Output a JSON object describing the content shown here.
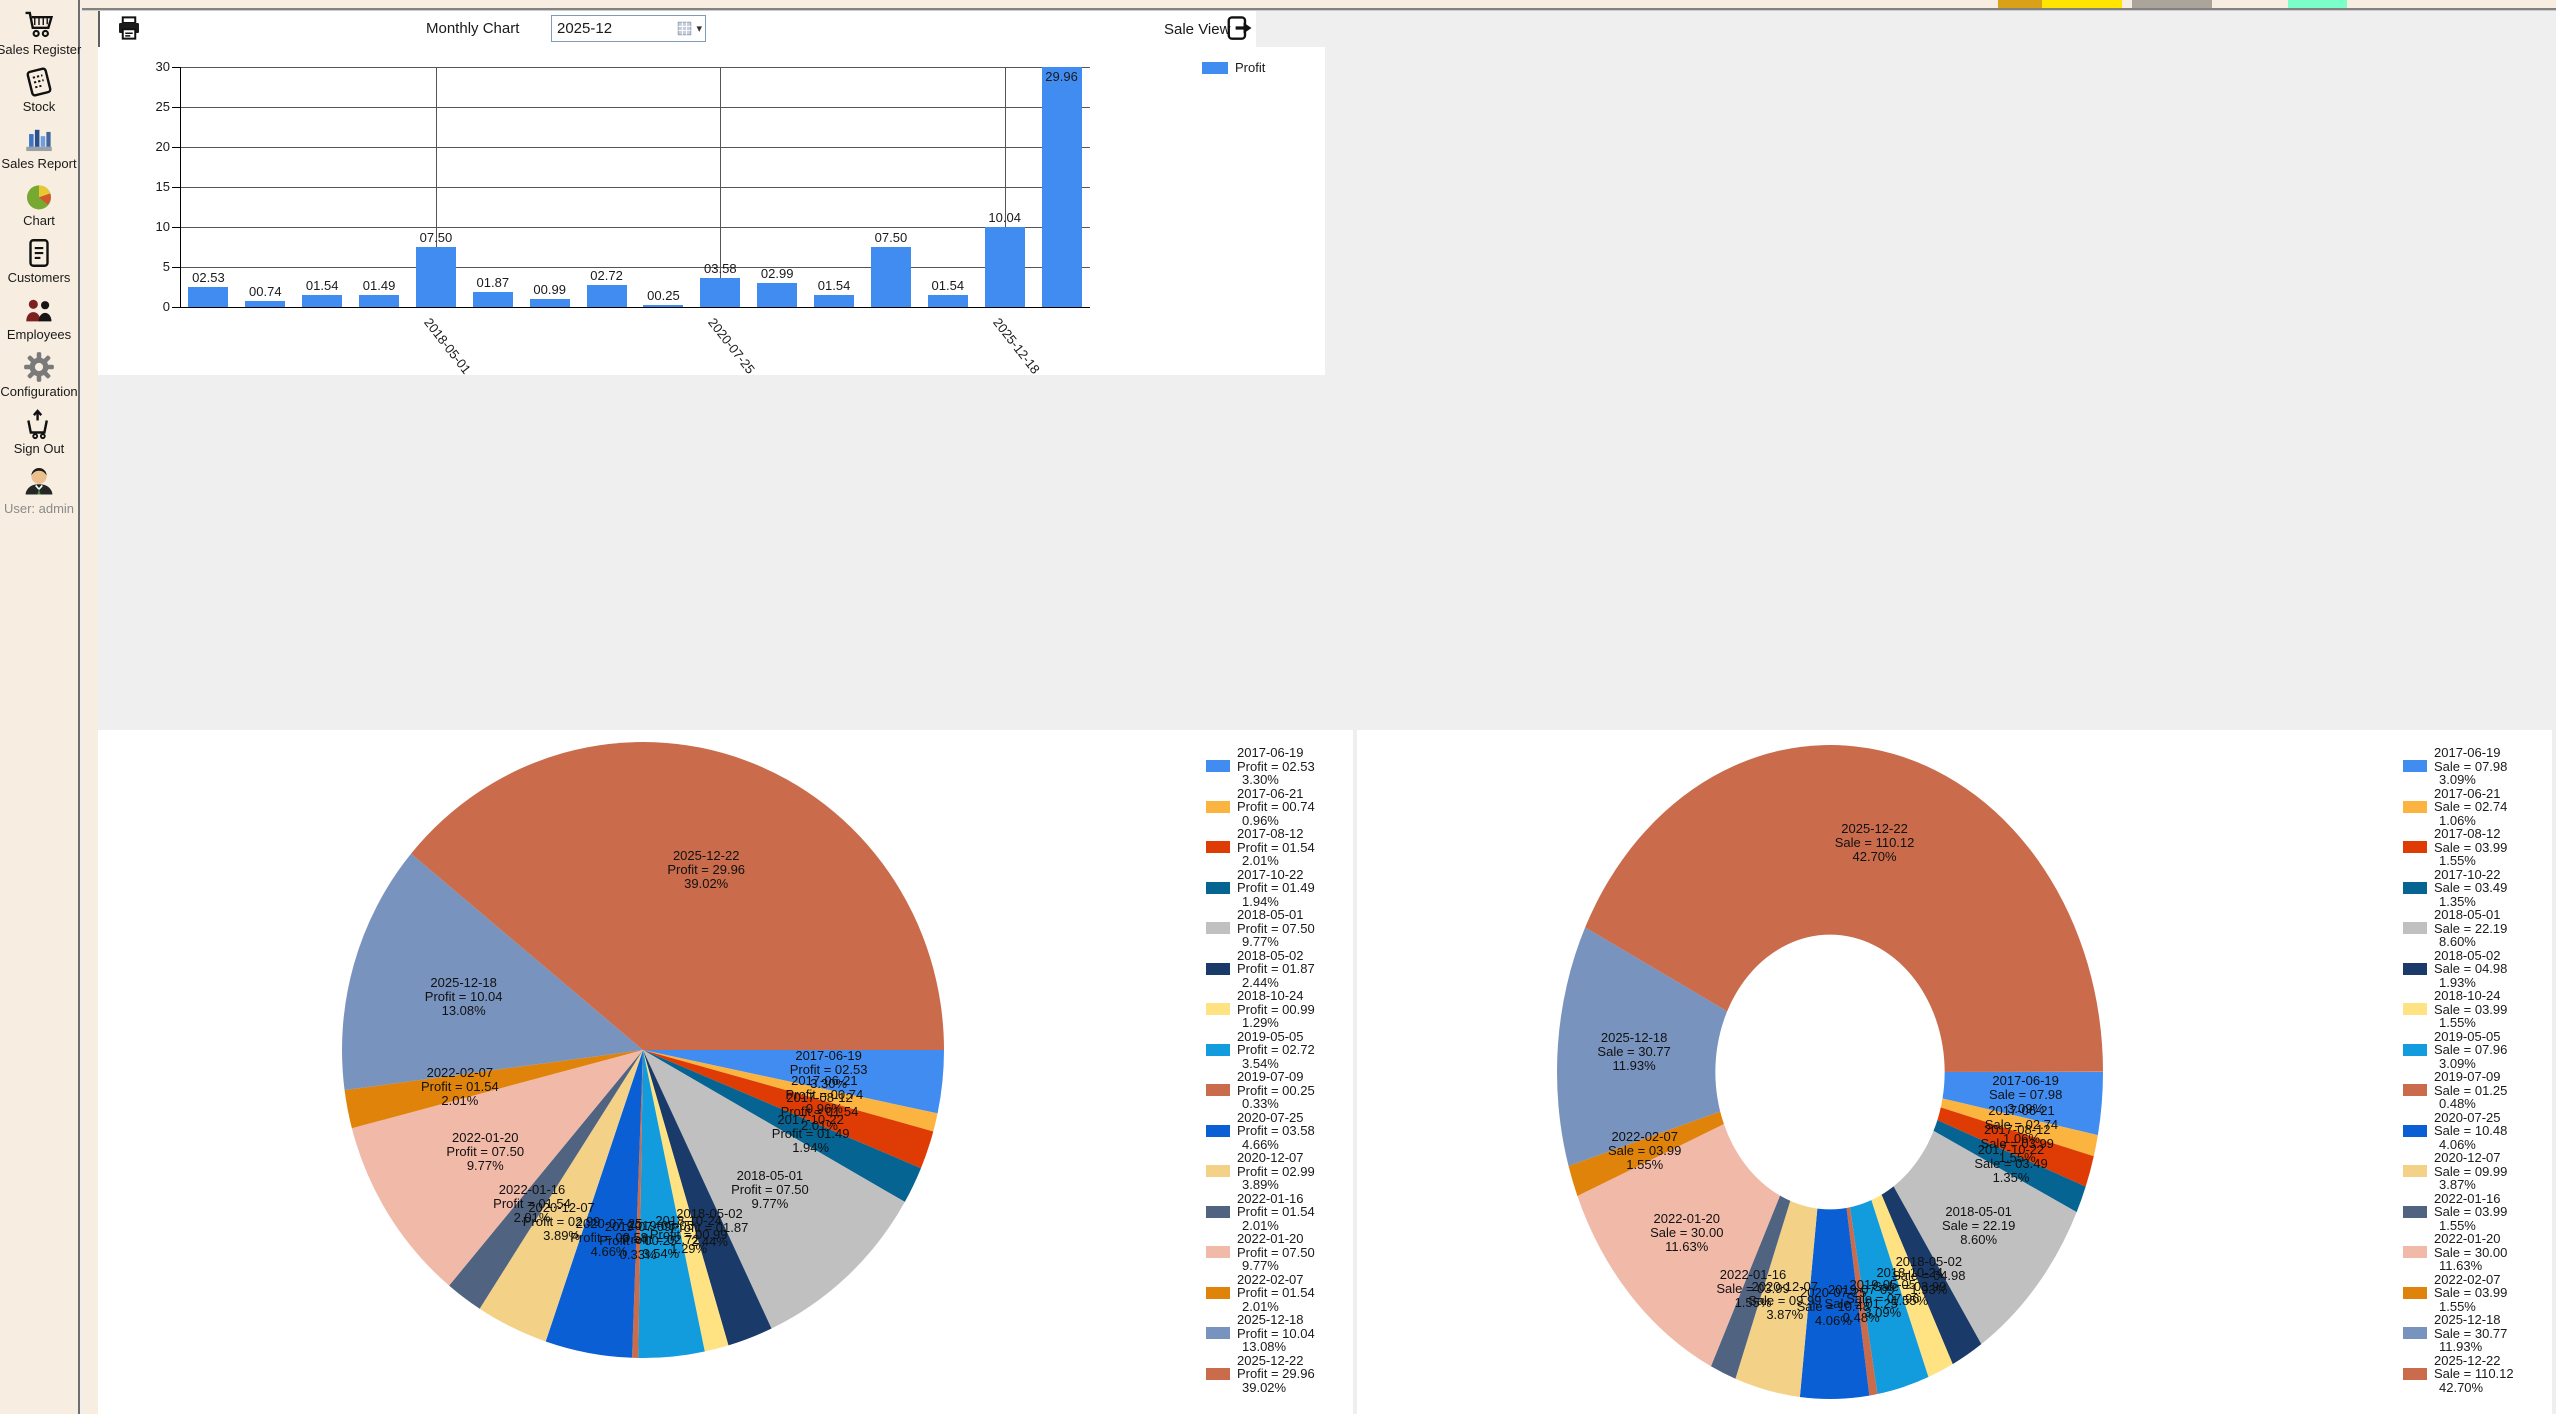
{
  "window": {
    "background_color": "#EFEFEF",
    "sidebar_color": "#F7EEE1",
    "artifact_strip_colors": [
      "#D9A117",
      "#FFE500",
      "#ABA49B",
      "#7BFFC8"
    ],
    "corner_artifact_color": "#E8C54A"
  },
  "sidebar": {
    "items": [
      {
        "label": "Sales Register",
        "icon": "shopping-cart-icon"
      },
      {
        "label": "Stock",
        "icon": "receipt-icon"
      },
      {
        "label": "Sales Report",
        "icon": "bar-graph-icon"
      },
      {
        "label": "Chart",
        "icon": "pie-chart-icon"
      },
      {
        "label": "Customers",
        "icon": "document-icon"
      },
      {
        "label": "Employees",
        "icon": "people-icon"
      },
      {
        "label": "Configuration",
        "icon": "gear-icon"
      },
      {
        "label": "Sign Out",
        "icon": "cart-up-arrow-icon"
      }
    ],
    "user": "User: admin"
  },
  "toolbar": {
    "print_icon": "printer-icon",
    "title": "Monthly Chart",
    "period_value": "2025-12",
    "period_dropdown_icon": "calendar-grid-icon",
    "period_dropdown_arrow": "▾",
    "sale_view_label": "Sale View",
    "sale_view_icon": "arrow-right-exit-icon"
  },
  "chart_data": [
    {
      "type": "bar",
      "series": "Profit",
      "bar_color": "#418CF0",
      "ylabel": "",
      "xlabel": "",
      "ylim": [
        0,
        30
      ],
      "ytick_step": 5,
      "ytick_labels": [
        "0",
        "5",
        "10",
        "15",
        "20",
        "25",
        "30"
      ],
      "grid": true,
      "legend_position": "top-right",
      "categories": [
        "2017-06-19",
        "2017-06-21",
        "2017-08-12",
        "2017-10-22",
        "2018-05-01",
        "2018-05-02",
        "2018-10-24",
        "2019-05-05",
        "2019-07-09",
        "2020-07-25",
        "2020-12-07",
        "2022-01-16",
        "2022-01-20",
        "2022-02-07",
        "2025-12-18",
        "2025-12-22"
      ],
      "values": [
        2.53,
        0.74,
        1.54,
        1.49,
        7.5,
        1.87,
        0.99,
        2.72,
        0.25,
        3.58,
        2.99,
        1.54,
        7.5,
        1.54,
        10.04,
        29.96
      ],
      "value_labels": [
        "02.53",
        "00.74",
        "01.54",
        "01.49",
        "07.50",
        "01.87",
        "00.99",
        "02.72",
        "00.25",
        "03.58",
        "02.99",
        "01.54",
        "07.50",
        "01.54",
        "10.04",
        "29.96"
      ],
      "x_tick_indices": [
        4,
        9,
        14
      ],
      "x_tick_labels": [
        "2018-05-01",
        "2020-07-25",
        "2025-12-18"
      ]
    },
    {
      "type": "pie",
      "series": "Profit",
      "legend_position": "right",
      "items": [
        {
          "date": "2017-06-19",
          "value_label": "02.53",
          "value": 2.53,
          "pct": 3.3,
          "pct_label": "3.30%",
          "color": "#418CF0"
        },
        {
          "date": "2017-06-21",
          "value_label": "00.74",
          "value": 0.74,
          "pct": 0.96,
          "pct_label": "0.96%",
          "color": "#FCB441"
        },
        {
          "date": "2017-08-12",
          "value_label": "01.54",
          "value": 1.54,
          "pct": 2.01,
          "pct_label": "2.01%",
          "color": "#DF3B05"
        },
        {
          "date": "2017-10-22",
          "value_label": "01.49",
          "value": 1.49,
          "pct": 1.94,
          "pct_label": "1.94%",
          "color": "#056492"
        },
        {
          "date": "2018-05-01",
          "value_label": "07.50",
          "value": 7.5,
          "pct": 9.77,
          "pct_label": "9.77%",
          "color": "#C0C0C0"
        },
        {
          "date": "2018-05-02",
          "value_label": "01.87",
          "value": 1.87,
          "pct": 2.44,
          "pct_label": "2.44%",
          "color": "#1A3B69"
        },
        {
          "date": "2018-10-24",
          "value_label": "00.99",
          "value": 0.99,
          "pct": 1.29,
          "pct_label": "1.29%",
          "color": "#FFE382"
        },
        {
          "date": "2019-05-05",
          "value_label": "02.72",
          "value": 2.72,
          "pct": 3.54,
          "pct_label": "3.54%",
          "color": "#129CDD"
        },
        {
          "date": "2019-07-09",
          "value_label": "00.25",
          "value": 0.25,
          "pct": 0.33,
          "pct_label": "0.33%",
          "color": "#CA6B4B"
        },
        {
          "date": "2020-07-25",
          "value_label": "03.58",
          "value": 3.58,
          "pct": 4.66,
          "pct_label": "4.66%",
          "color": "#0A5FD4"
        },
        {
          "date": "2020-12-07",
          "value_label": "02.99",
          "value": 2.99,
          "pct": 3.89,
          "pct_label": "3.89%",
          "color": "#F3D288"
        },
        {
          "date": "2022-01-16",
          "value_label": "01.54",
          "value": 1.54,
          "pct": 2.01,
          "pct_label": "2.01%",
          "color": "#506381"
        },
        {
          "date": "2022-01-20",
          "value_label": "07.50",
          "value": 7.5,
          "pct": 9.77,
          "pct_label": "9.77%",
          "color": "#F1B9A8"
        },
        {
          "date": "2022-02-07",
          "value_label": "01.54",
          "value": 1.54,
          "pct": 2.01,
          "pct_label": "2.01%",
          "color": "#E0830A"
        },
        {
          "date": "2025-12-18",
          "value_label": "10.04",
          "value": 10.04,
          "pct": 13.08,
          "pct_label": "13.08%",
          "color": "#7893BE"
        },
        {
          "date": "2025-12-22",
          "value_label": "29.96",
          "value": 29.96,
          "pct": 39.02,
          "pct_label": "39.02%",
          "color": "#CA6B4B"
        }
      ]
    },
    {
      "type": "donut",
      "series": "Sale",
      "legend_position": "right",
      "items": [
        {
          "date": "2017-06-19",
          "value_label": "07.98",
          "value": 7.98,
          "pct": 3.09,
          "pct_label": "3.09%",
          "color": "#418CF0"
        },
        {
          "date": "2017-06-21",
          "value_label": "02.74",
          "value": 2.74,
          "pct": 1.06,
          "pct_label": "1.06%",
          "color": "#FCB441"
        },
        {
          "date": "2017-08-12",
          "value_label": "03.99",
          "value": 3.99,
          "pct": 1.55,
          "pct_label": "1.55%",
          "color": "#DF3B05"
        },
        {
          "date": "2017-10-22",
          "value_label": "03.49",
          "value": 3.49,
          "pct": 1.35,
          "pct_label": "1.35%",
          "color": "#056492"
        },
        {
          "date": "2018-05-01",
          "value_label": "22.19",
          "value": 22.19,
          "pct": 8.6,
          "pct_label": "8.60%",
          "color": "#C0C0C0"
        },
        {
          "date": "2018-05-02",
          "value_label": "04.98",
          "value": 4.98,
          "pct": 1.93,
          "pct_label": "1.93%",
          "color": "#1A3B69"
        },
        {
          "date": "2018-10-24",
          "value_label": "03.99",
          "value": 3.99,
          "pct": 1.55,
          "pct_label": "1.55%",
          "color": "#FFE382"
        },
        {
          "date": "2019-05-05",
          "value_label": "07.96",
          "value": 7.96,
          "pct": 3.09,
          "pct_label": "3.09%",
          "color": "#129CDD"
        },
        {
          "date": "2019-07-09",
          "value_label": "01.25",
          "value": 1.25,
          "pct": 0.48,
          "pct_label": "0.48%",
          "color": "#CA6B4B"
        },
        {
          "date": "2020-07-25",
          "value_label": "10.48",
          "value": 10.48,
          "pct": 4.06,
          "pct_label": "4.06%",
          "color": "#0A5FD4"
        },
        {
          "date": "2020-12-07",
          "value_label": "09.99",
          "value": 9.99,
          "pct": 3.87,
          "pct_label": "3.87%",
          "color": "#F3D288"
        },
        {
          "date": "2022-01-16",
          "value_label": "03.99",
          "value": 3.99,
          "pct": 1.55,
          "pct_label": "1.55%",
          "color": "#506381"
        },
        {
          "date": "2022-01-20",
          "value_label": "30.00",
          "value": 30.0,
          "pct": 11.63,
          "pct_label": "11.63%",
          "color": "#F1B9A8"
        },
        {
          "date": "2022-02-07",
          "value_label": "03.99",
          "value": 3.99,
          "pct": 1.55,
          "pct_label": "1.55%",
          "color": "#E0830A"
        },
        {
          "date": "2025-12-18",
          "value_label": "30.77",
          "value": 30.77,
          "pct": 11.93,
          "pct_label": "11.93%",
          "color": "#7893BE"
        },
        {
          "date": "2025-12-22",
          "value_label": "110.12",
          "value": 110.12,
          "pct": 42.7,
          "pct_label": "42.70%",
          "color": "#CA6B4B"
        }
      ]
    }
  ]
}
